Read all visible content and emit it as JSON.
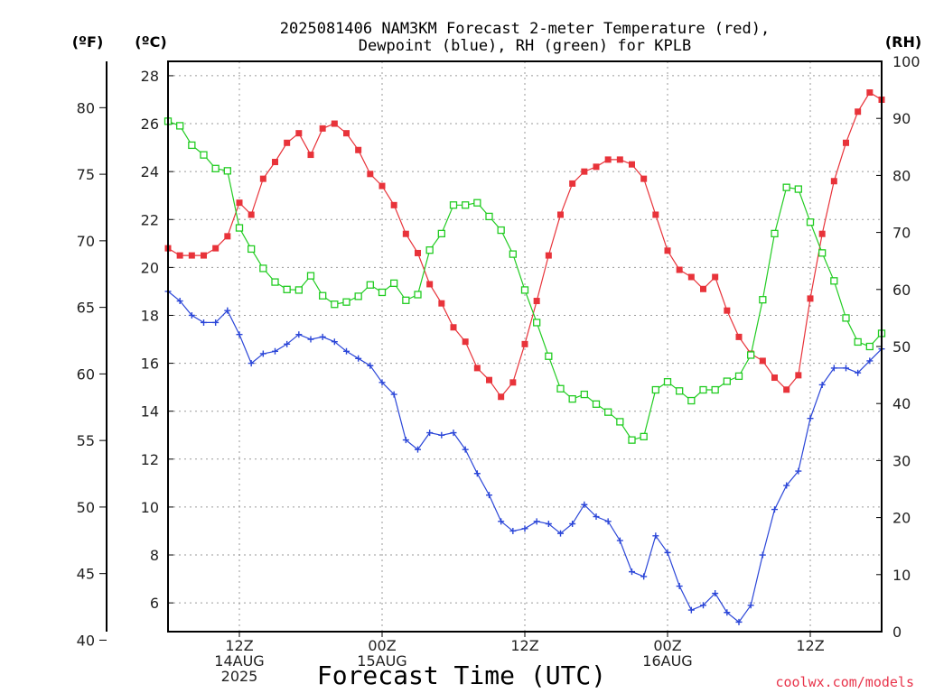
{
  "chart_data": {
    "type": "line",
    "title_line1": "2025081406 NAM3KM Forecast 2-meter Temperature (red),",
    "title_line2": "Dewpoint (blue), RH (green) for KPLB",
    "xlabel": "Forecast Time (UTC)",
    "credit": "coolwx.com/models",
    "units": {
      "fahrenheit": "(ºF)",
      "celsius": "(ºC)",
      "rh": "(RH)"
    },
    "x_hours": [
      0,
      1,
      2,
      3,
      4,
      5,
      6,
      7,
      8,
      9,
      10,
      11,
      12,
      13,
      14,
      15,
      16,
      17,
      18,
      19,
      20,
      21,
      22,
      23,
      24,
      25,
      26,
      27,
      28,
      29,
      30,
      31,
      32,
      33,
      34,
      35,
      36,
      37,
      38,
      39,
      40,
      41,
      42,
      43,
      44,
      45,
      46,
      47,
      48,
      49,
      50,
      51,
      52,
      53,
      54,
      55,
      56,
      57,
      58,
      59,
      60
    ],
    "x_tick_labels": [
      {
        "hour": 6,
        "lines": [
          "12Z",
          "14AUG",
          "2025"
        ]
      },
      {
        "hour": 18,
        "lines": [
          "00Z",
          "15AUG"
        ]
      },
      {
        "hour": 30,
        "lines": [
          "12Z"
        ]
      },
      {
        "hour": 42,
        "lines": [
          "00Z",
          "16AUG"
        ]
      },
      {
        "hour": 54,
        "lines": [
          "12Z"
        ]
      }
    ],
    "x_range": [
      0,
      60
    ],
    "celsius_range": [
      4.8,
      28.6
    ],
    "celsius_ticks": [
      "6",
      "8",
      "10",
      "12",
      "14",
      "16",
      "18",
      "20",
      "22",
      "24",
      "26",
      "28"
    ],
    "fahrenheit_ticks": [
      "40",
      "45",
      "50",
      "55",
      "60",
      "65",
      "70",
      "75",
      "80"
    ],
    "rh_range": [
      0,
      100
    ],
    "rh_ticks": [
      "0",
      "10",
      "20",
      "30",
      "40",
      "50",
      "60",
      "70",
      "80",
      "90",
      "100"
    ],
    "grid": true,
    "series": [
      {
        "name": "Temperature",
        "color": "#e8333a",
        "marker": "filled-square",
        "axis": "celsius",
        "values": [
          20.8,
          20.5,
          20.5,
          20.5,
          20.8,
          21.3,
          22.7,
          22.2,
          23.7,
          24.4,
          25.2,
          25.6,
          24.7,
          25.8,
          26.0,
          25.6,
          24.9,
          23.9,
          23.4,
          22.6,
          21.4,
          20.6,
          19.3,
          18.5,
          17.5,
          16.9,
          15.8,
          15.3,
          14.6,
          15.2,
          16.8,
          18.6,
          20.5,
          22.2,
          23.5,
          24.0,
          24.2,
          24.5,
          24.5,
          24.3,
          23.7,
          22.2,
          20.7,
          19.9,
          19.6,
          19.1,
          19.6,
          18.2,
          17.1,
          16.4,
          16.1,
          15.4,
          14.9,
          15.5,
          18.7,
          21.4,
          23.6,
          25.2,
          26.5,
          27.3,
          27.0
        ]
      },
      {
        "name": "Dewpoint",
        "color": "#2b46d8",
        "marker": "plus",
        "axis": "celsius",
        "values": [
          19.0,
          18.6,
          18.0,
          17.7,
          17.7,
          18.2,
          17.2,
          16.0,
          16.4,
          16.5,
          16.8,
          17.2,
          17.0,
          17.1,
          16.9,
          16.5,
          16.2,
          15.9,
          15.2,
          14.7,
          12.8,
          12.4,
          13.1,
          13.0,
          13.1,
          12.4,
          11.4,
          10.5,
          9.4,
          9.0,
          9.1,
          9.4,
          9.3,
          8.9,
          9.3,
          10.1,
          9.6,
          9.4,
          8.6,
          7.3,
          7.1,
          8.8,
          8.1,
          6.7,
          5.7,
          5.9,
          6.4,
          5.6,
          5.2,
          5.9,
          8.0,
          9.9,
          10.9,
          11.5,
          13.7,
          15.1,
          15.8,
          15.8,
          15.6,
          16.1,
          16.6
        ]
      },
      {
        "name": "RH",
        "color": "#22cc22",
        "marker": "open-square",
        "axis": "rh",
        "values": [
          89.5,
          88.7,
          85.3,
          83.6,
          81.2,
          80.8,
          70.8,
          67.1,
          63.7,
          61.3,
          60.0,
          59.9,
          62.4,
          58.9,
          57.4,
          57.8,
          58.8,
          60.8,
          59.5,
          61.1,
          58.1,
          59.1,
          66.9,
          69.8,
          74.8,
          74.8,
          75.2,
          72.8,
          70.4,
          66.2,
          59.9,
          54.2,
          48.3,
          42.6,
          40.8,
          41.6,
          39.9,
          38.5,
          36.8,
          33.6,
          34.2,
          42.4,
          43.8,
          42.2,
          40.5,
          42.4,
          42.4,
          43.9,
          44.8,
          48.5,
          58.2,
          69.8,
          77.9,
          77.6,
          71.8,
          66.4,
          61.5,
          55.0,
          50.8,
          50.0,
          52.3
        ]
      }
    ]
  }
}
